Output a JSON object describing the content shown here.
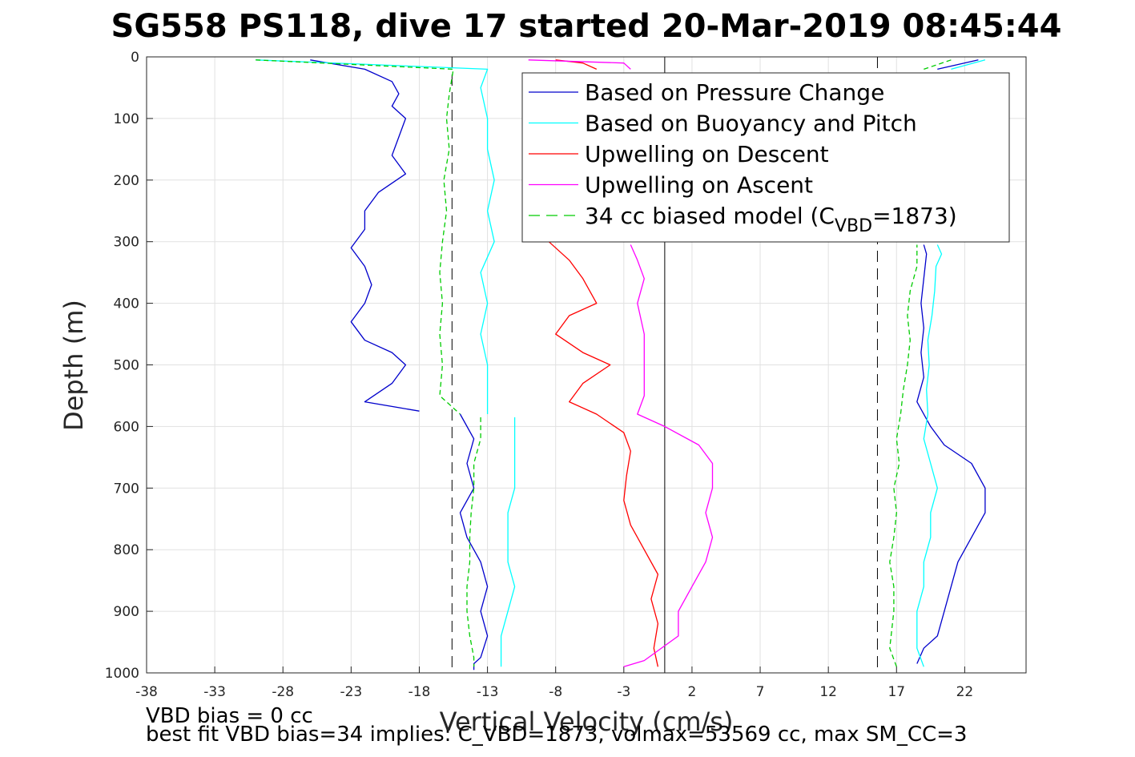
{
  "chart_data": {
    "type": "line",
    "title": "SG558 PS118, dive 17 started 20-Mar-2019 08:45:44",
    "xlabel": "Vertical Velocity (cm/s)",
    "ylabel": "Depth (m)",
    "xlim": [
      -38,
      26.5
    ],
    "ylim": [
      0,
      1000
    ],
    "y_reversed": true,
    "grid": true,
    "xticks": [
      -38,
      -33,
      -28,
      -23,
      -18,
      -13,
      -8,
      -3,
      2,
      7,
      12,
      17,
      22
    ],
    "yticks": [
      0,
      100,
      200,
      300,
      400,
      500,
      600,
      700,
      800,
      900,
      1000
    ],
    "legend_position": "top-right",
    "reference_lines": [
      {
        "x": -15.6,
        "style": "dashed"
      },
      {
        "x": 0,
        "style": "solid"
      },
      {
        "x": 15.6,
        "style": "dashed"
      }
    ],
    "series": [
      {
        "name": "Based on Pressure Change",
        "color": "#0000cc",
        "style": "solid",
        "segments": [
          {
            "depth": [
              5,
              20,
              40,
              60,
              80,
              100,
              130,
              160,
              190,
              220,
              250,
              280,
              310,
              340,
              370,
              400,
              430,
              460,
              480,
              500,
              530,
              560,
              575
            ],
            "velocity": [
              -26,
              -22,
              -20,
              -19.5,
              -20,
              -19,
              -19.5,
              -20,
              -19,
              -21,
              -22,
              -22,
              -23,
              -22,
              -21.5,
              -22,
              -23,
              -22,
              -20,
              -19,
              -20,
              -22,
              -18
            ]
          },
          {
            "depth": [
              580,
              620,
              660,
              700,
              740,
              780,
              820,
              860,
              900,
              940,
              975,
              985,
              995
            ],
            "velocity": [
              -15,
              -14,
              -14.5,
              -14,
              -15,
              -14.5,
              -13.5,
              -13,
              -13.5,
              -13,
              -13.5,
              -14,
              -14
            ]
          },
          {
            "depth": [
              985,
              960,
              940,
              900,
              860,
              820,
              780,
              740,
              700,
              660,
              630,
              600,
              560,
              520,
              480,
              440,
              400,
              360,
              320,
              305
            ],
            "velocity": [
              18.5,
              19,
              20,
              20.5,
              21,
              21.5,
              22.5,
              23.5,
              23.5,
              22.5,
              20.5,
              19.5,
              18.5,
              19,
              18.8,
              19,
              18.8,
              19,
              19.2,
              19
            ]
          },
          {
            "depth": [
              20,
              5
            ],
            "velocity": [
              20,
              23
            ]
          }
        ]
      },
      {
        "name": "Based on Buoyancy and Pitch",
        "color": "#00ffff",
        "style": "solid",
        "segments": [
          {
            "depth": [
              5,
              20,
              50,
              100,
              150,
              200,
              250,
              300,
              350,
              400,
              450,
              500,
              550,
              580
            ],
            "velocity": [
              -30,
              -13,
              -13.5,
              -13,
              -13,
              -12.5,
              -13,
              -12.5,
              -13.5,
              -13,
              -13.5,
              -13,
              -13,
              -13
            ]
          },
          {
            "depth": [
              585,
              620,
              660,
              700,
              740,
              780,
              820,
              860,
              900,
              940,
              975,
              990
            ],
            "velocity": [
              -11,
              -11,
              -11,
              -11,
              -11.5,
              -11.5,
              -11.5,
              -11,
              -11.5,
              -12,
              -12,
              -12
            ]
          },
          {
            "depth": [
              990,
              960,
              900,
              860,
              820,
              780,
              740,
              700,
              660,
              620,
              580,
              540,
              500,
              460,
              420,
              380,
              340,
              320,
              305
            ],
            "velocity": [
              19,
              18.5,
              18.5,
              19,
              19,
              19.5,
              19.5,
              20,
              19.5,
              19,
              19.3,
              19.2,
              19.4,
              19.3,
              19.6,
              19.8,
              19.9,
              20.3,
              20
            ]
          },
          {
            "depth": [
              20,
              5
            ],
            "velocity": [
              21,
              23.5
            ]
          }
        ]
      },
      {
        "name": "Upwelling on Descent",
        "color": "#ff0000",
        "style": "solid",
        "segments": [
          {
            "depth": [
              5,
              10,
              20
            ],
            "velocity": [
              -8,
              -6,
              -5
            ]
          },
          {
            "depth": [
              300,
              330,
              360,
              400,
              420,
              450,
              480,
              500,
              530,
              560,
              580,
              610,
              640,
              680,
              720,
              760,
              800,
              840,
              880,
              920,
              960,
              990
            ],
            "velocity": [
              -8.5,
              -7,
              -6,
              -5,
              -7,
              -8,
              -6,
              -4,
              -6,
              -7,
              -5,
              -3,
              -2.5,
              -2.8,
              -3,
              -2.5,
              -1.5,
              -0.5,
              -1,
              -0.5,
              -0.8,
              -0.5
            ]
          }
        ]
      },
      {
        "name": "Upwelling on Ascent",
        "color": "#ff00ff",
        "style": "solid",
        "segments": [
          {
            "depth": [
              5,
              10,
              20
            ],
            "velocity": [
              -10,
              -3,
              -2.5
            ]
          },
          {
            "depth": [
              305,
              330,
              360,
              400,
              450,
              500,
              550,
              580,
              600,
              630,
              660,
              700,
              740,
              780,
              820,
              860,
              900,
              940,
              980,
              990
            ],
            "velocity": [
              -2.5,
              -2,
              -1.5,
              -2,
              -1.5,
              -1.5,
              -1.5,
              -2,
              0,
              2.5,
              3.5,
              3.5,
              3,
              3.5,
              3,
              2,
              1,
              1,
              -1.5,
              -3
            ]
          }
        ]
      },
      {
        "name": "34 cc biased model (C",
        "name_subscript": "VBD",
        "name_suffix": "=1873)",
        "color": "#00cc00",
        "style": "dashed",
        "segments": [
          {
            "depth": [
              5,
              20,
              60,
              100,
              150,
              200,
              250,
              300,
              350,
              400,
              450,
              500,
              550,
              580
            ],
            "velocity": [
              -30,
              -15.5,
              -15.8,
              -16,
              -15.8,
              -16.2,
              -16,
              -16.3,
              -16.5,
              -16.3,
              -16.5,
              -16.3,
              -16.5,
              -15
            ]
          },
          {
            "depth": [
              585,
              620,
              660,
              700,
              740,
              780,
              820,
              860,
              900,
              940,
              975,
              990
            ],
            "velocity": [
              -13.5,
              -13.5,
              -14,
              -14,
              -14.2,
              -14.3,
              -14.3,
              -14.5,
              -14.5,
              -14.3,
              -14,
              -14
            ]
          },
          {
            "depth": [
              990,
              960,
              900,
              860,
              820,
              780,
              740,
              700,
              660,
              620,
              580,
              540,
              500,
              460,
              420,
              380,
              340,
              305
            ],
            "velocity": [
              17,
              16.5,
              16.8,
              16.8,
              16.5,
              16.8,
              17,
              16.8,
              17.2,
              17,
              17.3,
              17.5,
              17.8,
              18,
              17.8,
              18,
              18.5,
              18.5
            ]
          },
          {
            "depth": [
              20,
              5
            ],
            "velocity": [
              19,
              21
            ]
          }
        ]
      }
    ],
    "annotations": [
      "VBD bias = 0 cc",
      "best fit VBD bias=34 implies: C_VBD=1873, volmax=53569 cc, max SM_CC=3"
    ]
  }
}
